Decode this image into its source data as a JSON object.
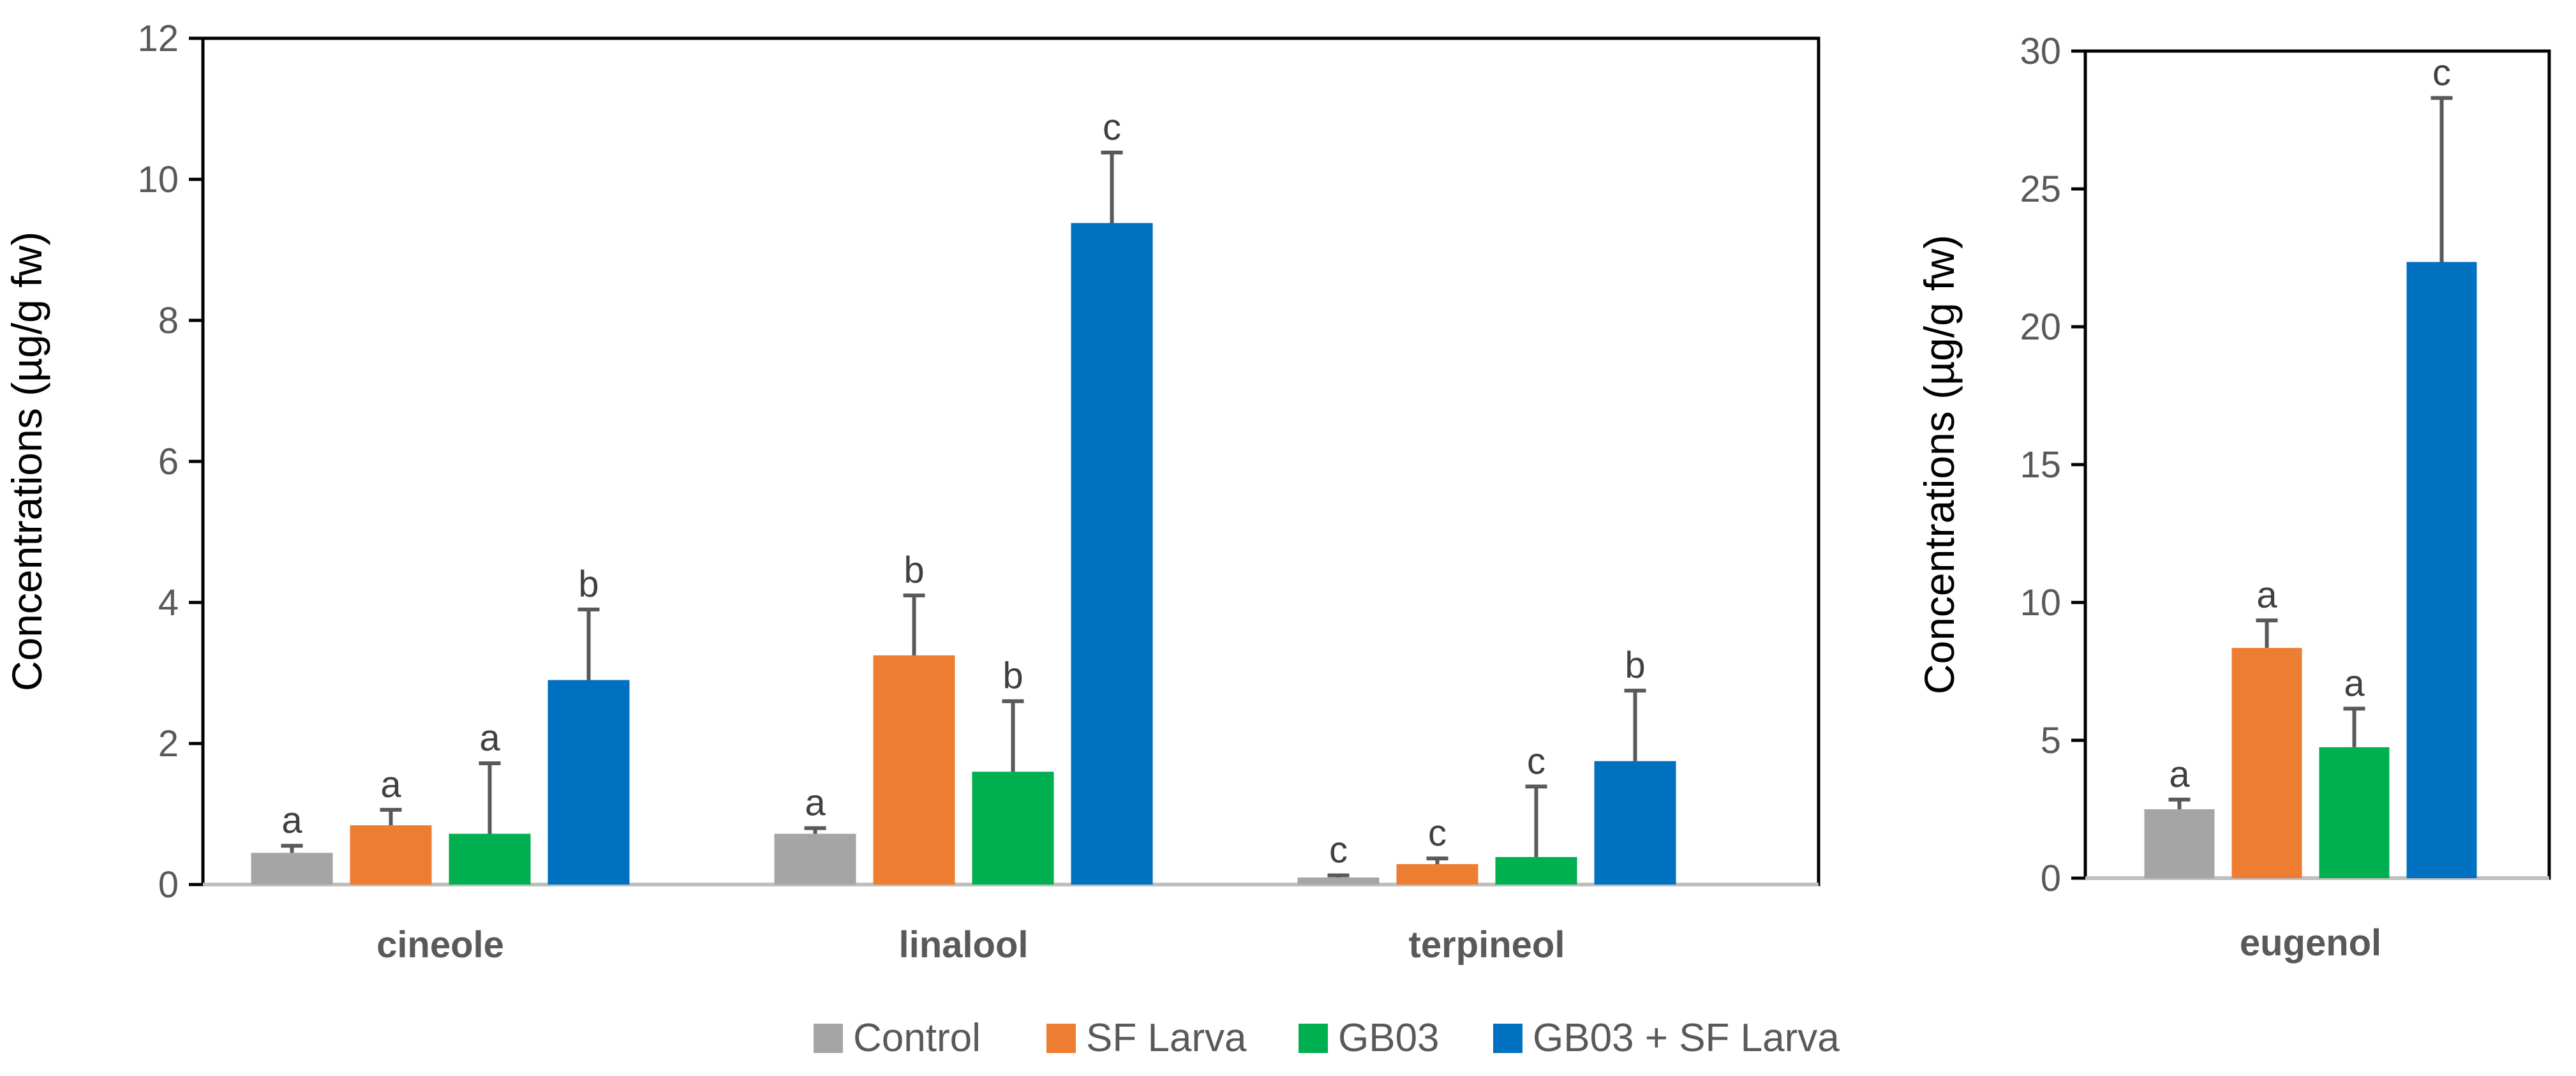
{
  "legend": [
    {
      "name": "Control",
      "color": "#A5A5A5"
    },
    {
      "name": "SF Larva",
      "color": "#ED7D31"
    },
    {
      "name": "GB03",
      "color": "#00B050"
    },
    {
      "name": "GB03 + SF Larva",
      "color": "#0070C0"
    }
  ],
  "chart_data": [
    {
      "type": "bar",
      "title": "",
      "xlabel": "",
      "ylabel": "Concentrations (µg/g fw)",
      "ylim": [
        0,
        12
      ],
      "yticks": [
        0,
        2,
        4,
        6,
        8,
        10,
        12
      ],
      "grid": false,
      "categories": [
        "cineole",
        "linalool",
        "terpineol"
      ],
      "series": [
        {
          "name": "Control",
          "color": "#A5A5A5",
          "values": [
            0.45,
            0.72,
            0.1
          ],
          "errors": [
            0.1,
            0.08,
            0.03
          ],
          "letters": [
            "a",
            "a",
            "c"
          ]
        },
        {
          "name": "SF Larva",
          "color": "#ED7D31",
          "values": [
            0.84,
            3.25,
            0.29
          ],
          "errors": [
            0.22,
            0.85,
            0.08
          ],
          "letters": [
            "a",
            "b",
            "c"
          ]
        },
        {
          "name": "GB03",
          "color": "#00B050",
          "values": [
            0.72,
            1.6,
            0.39
          ],
          "errors": [
            1.0,
            1.0,
            1.0
          ],
          "letters": [
            "a",
            "b",
            "c"
          ]
        },
        {
          "name": "GB03 + SF Larva",
          "color": "#0070C0",
          "values": [
            2.9,
            9.38,
            1.75
          ],
          "errors": [
            1.0,
            1.0,
            1.0
          ],
          "letters": [
            "b",
            "c",
            "b"
          ]
        }
      ]
    },
    {
      "type": "bar",
      "title": "",
      "xlabel": "",
      "ylabel": "Concentrations (µg/g fw)",
      "ylim": [
        0,
        30
      ],
      "yticks": [
        0,
        5,
        10,
        15,
        20,
        25,
        30
      ],
      "grid": false,
      "categories": [
        "eugenol"
      ],
      "series": [
        {
          "name": "Control",
          "color": "#A5A5A5",
          "values": [
            2.5
          ],
          "errors": [
            0.35
          ],
          "letters": [
            "a"
          ]
        },
        {
          "name": "SF Larva",
          "color": "#ED7D31",
          "values": [
            8.35
          ],
          "errors": [
            1.0
          ],
          "letters": [
            "a"
          ]
        },
        {
          "name": "GB03",
          "color": "#00B050",
          "values": [
            4.75
          ],
          "errors": [
            1.4
          ],
          "letters": [
            "a"
          ]
        },
        {
          "name": "GB03 + SF Larva",
          "color": "#0070C0",
          "values": [
            22.35
          ],
          "errors": [
            5.95
          ],
          "letters": [
            "c"
          ]
        }
      ]
    }
  ]
}
